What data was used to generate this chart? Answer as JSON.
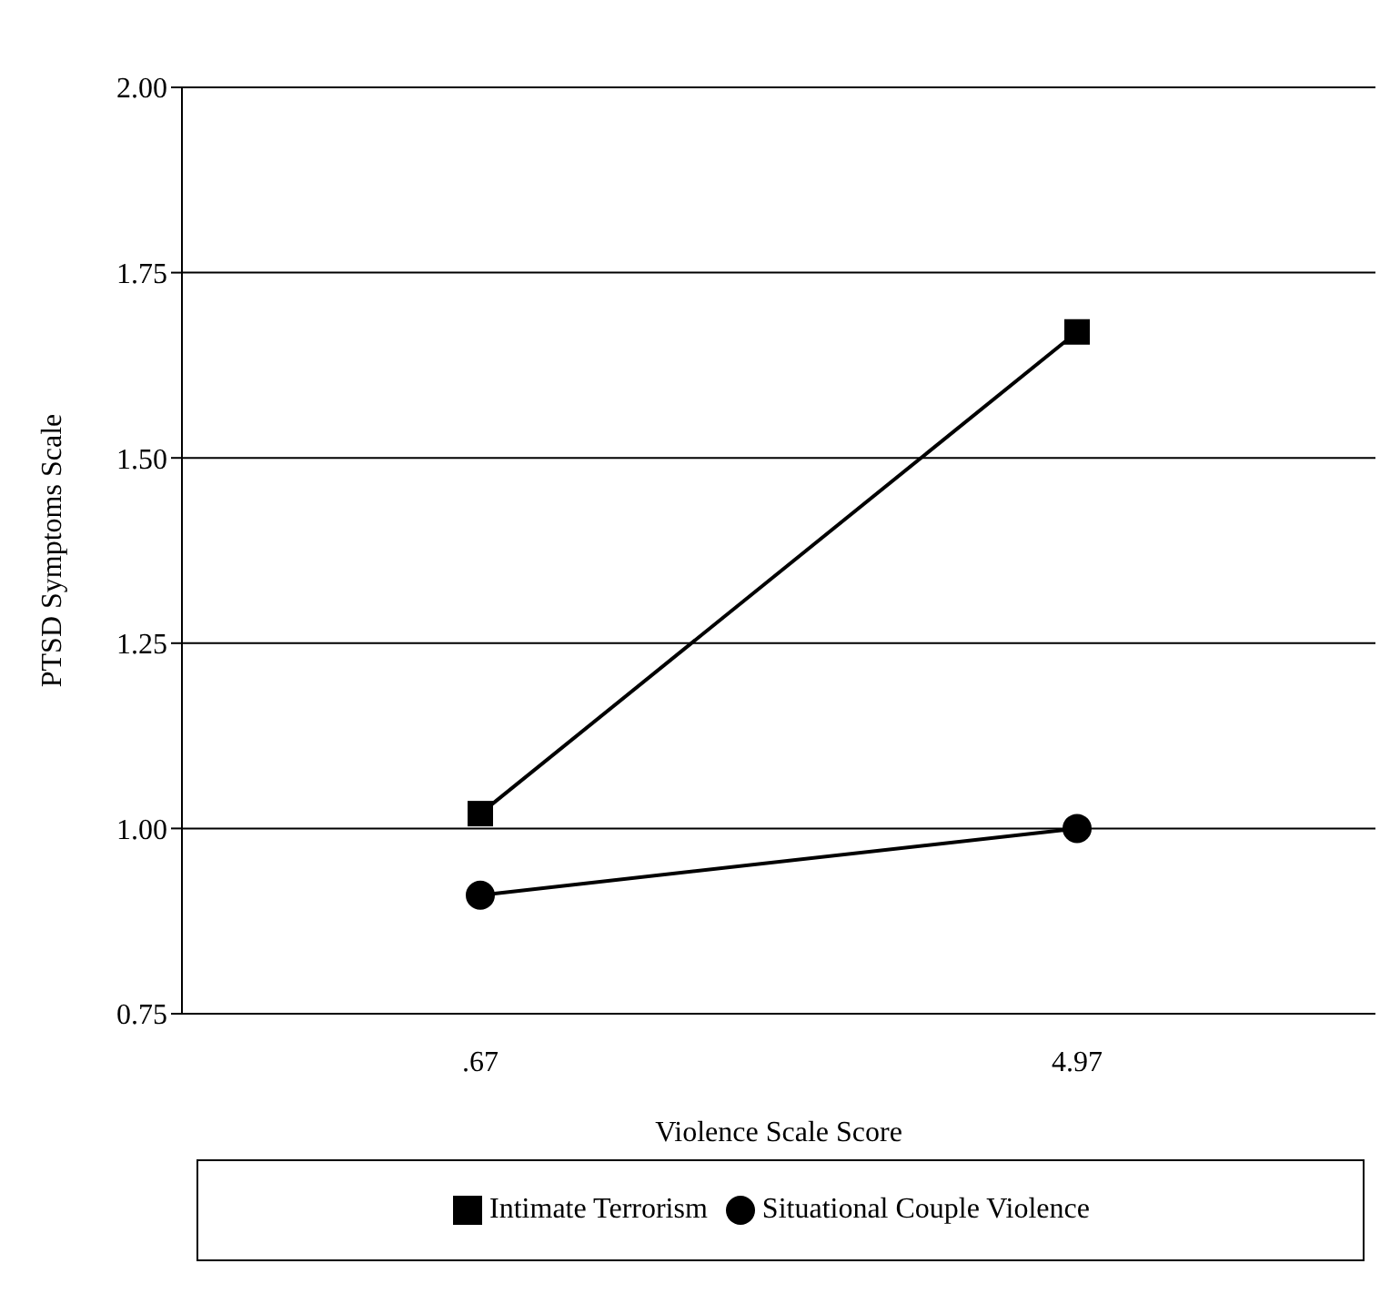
{
  "chart_data": {
    "type": "line",
    "xlabel": "Violence Scale Score",
    "ylabel": "PTSD Symptoms Scale",
    "categories": [
      ".67",
      "4.97"
    ],
    "series": [
      {
        "name": "Intimate Terrorism",
        "color": "#000000",
        "marker": "square",
        "values": [
          1.02,
          1.67
        ]
      },
      {
        "name": "Situational Couple Violence",
        "color": "#000000",
        "marker": "circle",
        "values": [
          0.91,
          1.0
        ]
      }
    ],
    "ylim": [
      0.75,
      2.0
    ],
    "yticks": [
      {
        "value": 0.75,
        "label": "0.75"
      },
      {
        "value": 1,
        "label": "1.00"
      },
      {
        "value": 1.25,
        "label": "1.25"
      },
      {
        "value": 1.5,
        "label": "1.50"
      },
      {
        "value": 1.75,
        "label": "1.75"
      },
      {
        "value": 2,
        "label": "2.00"
      }
    ],
    "grid": "y",
    "legend": "bottom",
    "line_style": "solid"
  }
}
